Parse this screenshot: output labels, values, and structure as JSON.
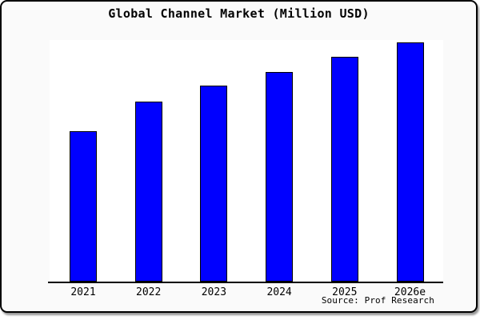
{
  "chart_data": {
    "type": "bar",
    "title": "Global Channel Market (Million USD)",
    "categories": [
      "2021",
      "2022",
      "2023",
      "2024",
      "2025",
      "2026e"
    ],
    "values": [
      0.622,
      0.745,
      0.81,
      0.869,
      0.93,
      0.991
    ],
    "xlabel": "",
    "ylabel": "",
    "ylim": [
      0,
      1
    ],
    "grid": false,
    "legend": false,
    "bar_color": "#0000ff",
    "bar_border_color": "#000000",
    "plot_background": "#ffffff",
    "frame_background": "#fafafa",
    "source": "Source: Prof Research"
  }
}
